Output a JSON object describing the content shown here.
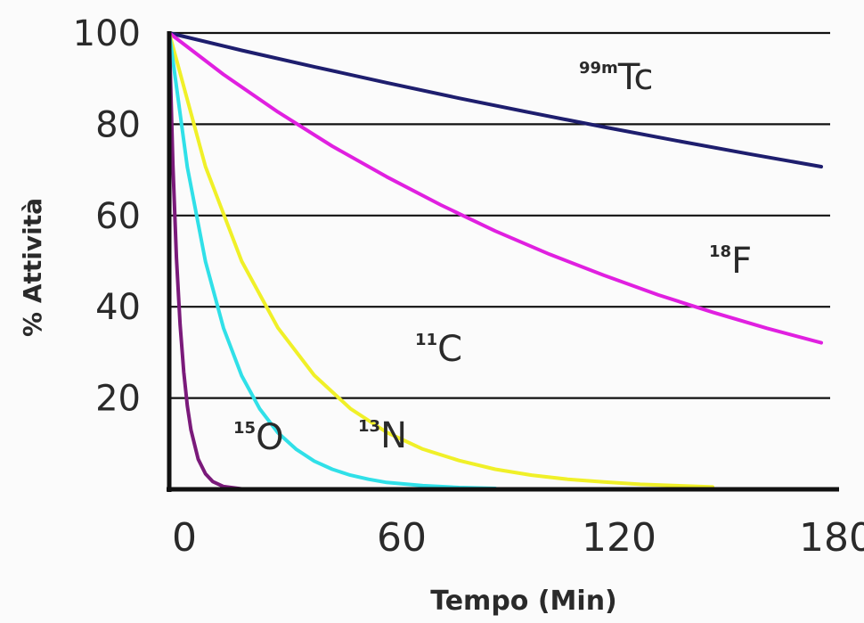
{
  "chart_data": {
    "type": "line",
    "title": "",
    "xlabel": "Tempo (Min)",
    "ylabel": "% Attività",
    "xlim": [
      0,
      180
    ],
    "ylim": [
      0,
      100
    ],
    "x_ticks": [
      "0",
      "60",
      "120",
      "180"
    ],
    "y_ticks": [
      "20",
      "40",
      "60",
      "80",
      "100"
    ],
    "y_gridlines": [
      20,
      40,
      60,
      80,
      100
    ],
    "grid": "horizontal",
    "series": [
      {
        "name": "Tc",
        "isotope_mass": "99m",
        "color": "#1e1e6e",
        "x": [
          0,
          20,
          40,
          60,
          80,
          100,
          120,
          140,
          160,
          180
        ],
        "y": [
          100,
          96.2,
          92.6,
          89.1,
          85.7,
          82.5,
          79.4,
          76.4,
          73.5,
          70.7
        ]
      },
      {
        "name": "F",
        "isotope_mass": "18",
        "color": "#e020e0",
        "x": [
          0,
          15,
          30,
          45,
          60,
          75,
          90,
          105,
          120,
          135,
          150,
          165,
          180
        ],
        "y": [
          100,
          90.9,
          82.7,
          75.2,
          68.5,
          62.3,
          56.6,
          51.5,
          46.9,
          42.6,
          38.8,
          35.3,
          32.1
        ]
      },
      {
        "name": "C",
        "isotope_mass": "11",
        "color": "#f0f028",
        "x": [
          0,
          10,
          20,
          30,
          40,
          50,
          60,
          70,
          80,
          90,
          100,
          110,
          120,
          130,
          140,
          150
        ],
        "y": [
          100,
          70.7,
          50.0,
          35.4,
          25.0,
          17.7,
          12.5,
          8.8,
          6.3,
          4.4,
          3.1,
          2.2,
          1.6,
          1.1,
          0.8,
          0.5
        ]
      },
      {
        "name": "N",
        "isotope_mass": "13",
        "color": "#30e0e8",
        "x": [
          0,
          5,
          10,
          15,
          20,
          25,
          30,
          35,
          40,
          45,
          50,
          55,
          60,
          70,
          80,
          90
        ],
        "y": [
          100,
          70.6,
          49.9,
          35.3,
          24.9,
          17.6,
          12.4,
          8.8,
          6.2,
          4.4,
          3.1,
          2.2,
          1.5,
          0.8,
          0.4,
          0.2
        ]
      },
      {
        "name": "O",
        "isotope_mass": "15",
        "color": "#7a1a7a",
        "x": [
          0,
          1,
          2,
          3,
          4,
          5,
          6,
          8,
          10,
          12,
          15,
          20,
          25,
          30
        ],
        "y": [
          100,
          71.2,
          50.7,
          36.1,
          25.7,
          18.3,
          13.0,
          6.6,
          3.4,
          1.7,
          0.6,
          0.1,
          0.0,
          0.0
        ]
      }
    ]
  }
}
